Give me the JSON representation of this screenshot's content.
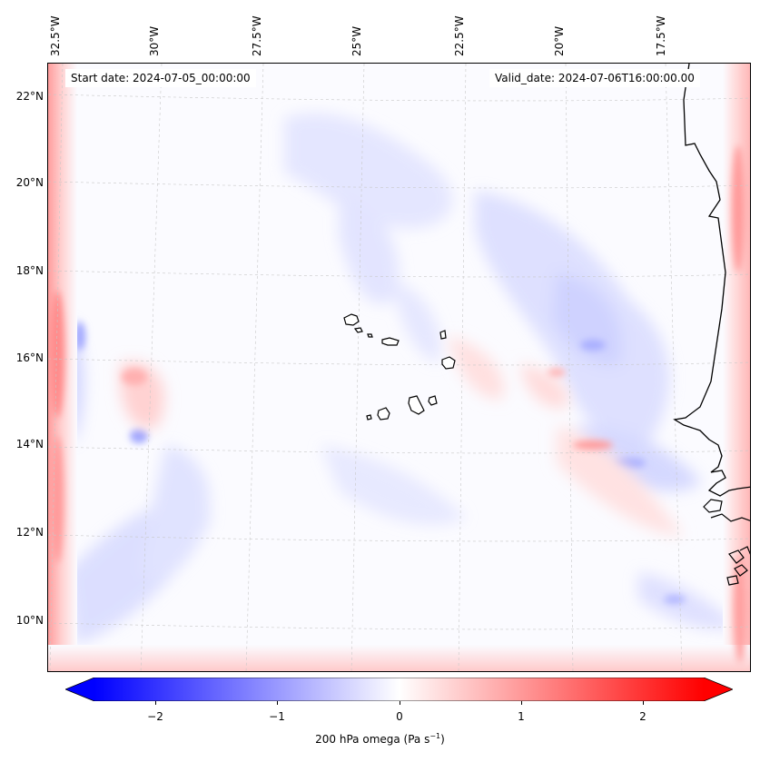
{
  "map": {
    "start_date": "Start date: 2024-07-05_00:00:00",
    "valid_date": "Valid_date: 2024-07-06T16:00:00.00",
    "longitude_labels": [
      "32.5°W",
      "30°W",
      "27.5°W",
      "25°W",
      "22.5°W",
      "20°W",
      "17.5°W"
    ],
    "latitude_labels": [
      "22°N",
      "20°N",
      "18°N",
      "16°N",
      "14°N",
      "12°N",
      "10°N"
    ],
    "field": "200 hPa omega",
    "colors": {
      "negative": "#0000ff",
      "neutral": "#ffffff",
      "positive": "#ff0000",
      "coastline": "#000000"
    }
  },
  "colorbar": {
    "ticks": [
      "−2",
      "−1",
      "0",
      "1",
      "2"
    ],
    "tick_values": [
      -2,
      -1,
      0,
      1,
      2
    ],
    "range": [
      -2.5,
      2.5
    ],
    "title_prefix": "200 hPa omega (Pa s",
    "title_exponent": "−1",
    "title_suffix": ")"
  }
}
